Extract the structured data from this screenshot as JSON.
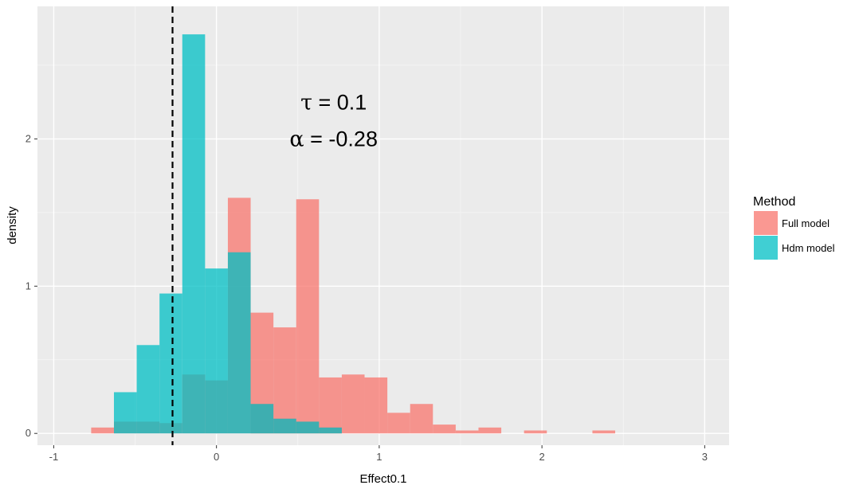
{
  "chart_data": {
    "type": "histogram",
    "xlabel": "Effect0.1",
    "ylabel": "density",
    "xlim": [
      -1.1,
      3.15
    ],
    "ylim": [
      -0.08,
      2.9
    ],
    "x_ticks": [
      -1,
      0,
      1,
      2,
      3
    ],
    "x_tick_labels": [
      "-1",
      "0",
      "1",
      "2",
      "3"
    ],
    "y_ticks": [
      0,
      1,
      2
    ],
    "y_tick_labels": [
      "0",
      "1",
      "2"
    ],
    "grid": true,
    "bin_width": 0.14,
    "reference_line": {
      "x": -0.27,
      "style": "dashed"
    },
    "annotations": [
      {
        "symbol": "τ",
        "text": " = 0.1",
        "x": 0.72,
        "y": 2.2
      },
      {
        "symbol": "α",
        "text": " = -0.28",
        "x": 0.72,
        "y": 1.95
      }
    ],
    "legend": {
      "title": "Method",
      "position": "right",
      "entries": [
        "Full model",
        "Hdm model"
      ]
    },
    "series": [
      {
        "name": "Full model",
        "color": "#F8766D",
        "bins": [
          {
            "x0": -0.77,
            "x1": -0.63,
            "density": 0.04
          },
          {
            "x0": -0.63,
            "x1": -0.49,
            "density": 0.08
          },
          {
            "x0": -0.49,
            "x1": -0.35,
            "density": 0.08
          },
          {
            "x0": -0.35,
            "x1": -0.21,
            "density": 0.07
          },
          {
            "x0": -0.21,
            "x1": -0.07,
            "density": 0.4
          },
          {
            "x0": -0.07,
            "x1": 0.07,
            "density": 0.36
          },
          {
            "x0": 0.07,
            "x1": 0.21,
            "density": 1.6
          },
          {
            "x0": 0.21,
            "x1": 0.35,
            "density": 0.2
          },
          {
            "x0": 0.35,
            "x1": 0.49,
            "density": 0.1
          },
          {
            "x0": 0.49,
            "x1": 0.63,
            "density": 0.08
          },
          {
            "x0": 0.63,
            "x1": 0.77,
            "density": 0.04
          }
        ],
        "extra_bins": [
          {
            "x0": 0.21,
            "x1": 0.35,
            "density": 0.82
          },
          {
            "x0": 0.35,
            "x1": 0.49,
            "density": 0.72
          },
          {
            "x0": 0.49,
            "x1": 0.63,
            "density": 1.59
          },
          {
            "x0": 0.63,
            "x1": 0.77,
            "density": 0.38
          },
          {
            "x0": 0.77,
            "x1": 0.91,
            "density": 0.4
          },
          {
            "x0": 0.91,
            "x1": 1.05,
            "density": 0.38
          },
          {
            "x0": 1.05,
            "x1": 1.19,
            "density": 0.14
          },
          {
            "x0": 1.19,
            "x1": 1.33,
            "density": 0.2
          },
          {
            "x0": 1.33,
            "x1": 1.47,
            "density": 0.06
          },
          {
            "x0": 1.47,
            "x1": 1.61,
            "density": 0.02
          },
          {
            "x0": 1.61,
            "x1": 1.75,
            "density": 0.04
          },
          {
            "x0": 1.89,
            "x1": 2.03,
            "density": 0.02
          },
          {
            "x0": 2.31,
            "x1": 2.45,
            "density": 0.02
          }
        ]
      },
      {
        "name": "Hdm model",
        "color": "#00BFC4",
        "bins": [
          {
            "x0": -0.63,
            "x1": -0.49,
            "density": 0.28
          },
          {
            "x0": -0.49,
            "x1": -0.35,
            "density": 0.6
          },
          {
            "x0": -0.35,
            "x1": -0.21,
            "density": 0.95
          },
          {
            "x0": -0.21,
            "x1": -0.07,
            "density": 2.71
          },
          {
            "x0": -0.07,
            "x1": 0.07,
            "density": 1.12
          },
          {
            "x0": 0.07,
            "x1": 0.21,
            "density": 1.23
          },
          {
            "x0": 0.21,
            "x1": 0.35,
            "density": 0.2
          },
          {
            "x0": 0.35,
            "x1": 0.49,
            "density": 0.1
          },
          {
            "x0": 0.49,
            "x1": 0.63,
            "density": 0.08
          },
          {
            "x0": 0.63,
            "x1": 0.77,
            "density": 0.04
          }
        ]
      }
    ]
  }
}
